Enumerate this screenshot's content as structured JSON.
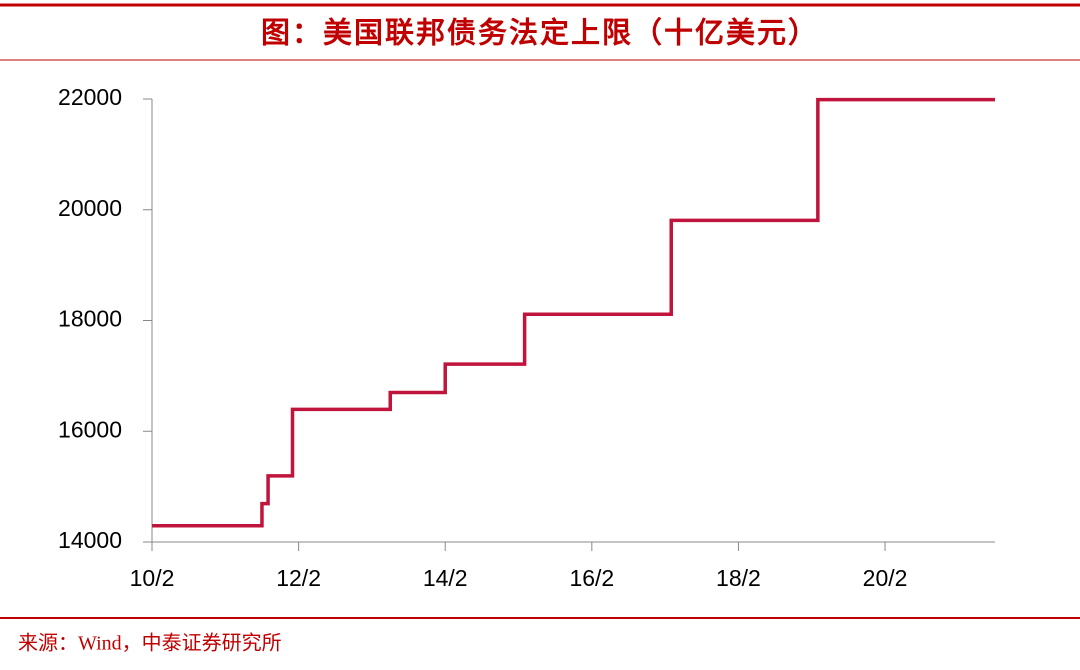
{
  "chart_data": {
    "type": "line",
    "step": "post",
    "title": "图：美国联邦债务法定上限（十亿美元）",
    "source": "来源：Wind，中泰证券研究所",
    "x": [
      "10/2",
      "11/8",
      "11/9",
      "12/1",
      "13/5",
      "14/2",
      "15/3",
      "17/3",
      "19/3",
      "21/8"
    ],
    "series": [
      {
        "color": "#c0143c",
        "values": [
          14294,
          14694,
          15194,
          16394,
          16699,
          17212,
          18113,
          19809,
          21988,
          21988
        ]
      }
    ],
    "xlim": [
      "10/2",
      "21/8"
    ],
    "xticks": [
      "10/2",
      "12/2",
      "14/2",
      "16/2",
      "18/2",
      "20/2"
    ],
    "ylim": [
      14000,
      22000
    ],
    "yticks": [
      14000,
      16000,
      18000,
      20000,
      22000
    ]
  }
}
